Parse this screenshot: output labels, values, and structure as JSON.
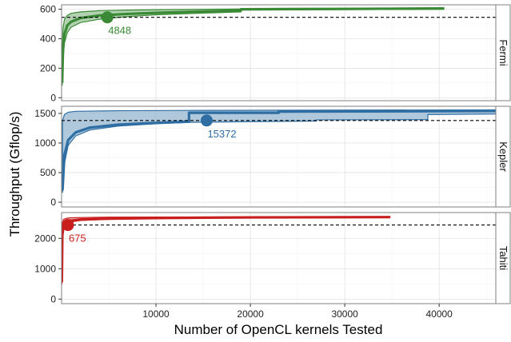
{
  "chart_data": {
    "type": "line",
    "xlabel": "Number of OpenCL kernels Tested",
    "ylabel": "Throughput (Gflop/s)",
    "xlim": [
      0,
      46000
    ],
    "x_ticks": [
      10000,
      20000,
      30000,
      40000
    ],
    "x_tick_labels": [
      "10000",
      "20000",
      "30000",
      "40000"
    ],
    "grid": true,
    "panels": [
      {
        "name": "Fermi",
        "color": "#3a8a35",
        "ylim": [
          -20,
          630
        ],
        "y_ticks": [
          0,
          200,
          400,
          600
        ],
        "reference_line": 545,
        "max_x": 40500,
        "marker": {
          "x": 4848,
          "y": 545,
          "label": "4848"
        },
        "median": [
          [
            60,
            100
          ],
          [
            150,
            330
          ],
          [
            300,
            430
          ],
          [
            600,
            490
          ],
          [
            1000,
            515
          ],
          [
            2000,
            540
          ],
          [
            4000,
            558
          ],
          [
            7000,
            568
          ],
          [
            10000,
            575
          ],
          [
            15000,
            585
          ],
          [
            19000,
            592
          ],
          [
            19000,
            600
          ],
          [
            28000,
            602
          ],
          [
            40500,
            605
          ]
        ],
        "band_low": [
          [
            60,
            80
          ],
          [
            150,
            250
          ],
          [
            300,
            370
          ],
          [
            600,
            440
          ],
          [
            1000,
            478
          ],
          [
            2000,
            510
          ],
          [
            4000,
            532
          ],
          [
            7000,
            550
          ],
          [
            10000,
            562
          ],
          [
            15000,
            574
          ],
          [
            19000,
            582
          ],
          [
            19000,
            594
          ],
          [
            40500,
            600
          ]
        ],
        "band_high": [
          [
            60,
            300
          ],
          [
            150,
            470
          ],
          [
            300,
            530
          ],
          [
            600,
            558
          ],
          [
            1000,
            572
          ],
          [
            2000,
            582
          ],
          [
            4000,
            590
          ],
          [
            7000,
            594
          ],
          [
            10000,
            597
          ],
          [
            15000,
            600
          ],
          [
            19000,
            602
          ],
          [
            40500,
            610
          ]
        ]
      },
      {
        "name": "Kepler",
        "color": "#2e6ea3",
        "ylim": [
          -80,
          1620
        ],
        "y_ticks": [
          0,
          500,
          1000,
          1500
        ],
        "reference_line": 1380,
        "max_x": 46000,
        "marker": {
          "x": 15372,
          "y": 1380,
          "label": "15372"
        },
        "median": [
          [
            100,
            200
          ],
          [
            300,
            800
          ],
          [
            700,
            1050
          ],
          [
            1500,
            1180
          ],
          [
            3000,
            1260
          ],
          [
            6000,
            1310
          ],
          [
            10000,
            1340
          ],
          [
            13500,
            1360
          ],
          [
            13500,
            1510
          ],
          [
            23000,
            1510
          ],
          [
            23000,
            1530
          ],
          [
            46000,
            1540
          ]
        ],
        "band_low": [
          [
            100,
            160
          ],
          [
            300,
            650
          ],
          [
            700,
            960
          ],
          [
            1500,
            1120
          ],
          [
            3000,
            1220
          ],
          [
            6000,
            1285
          ],
          [
            10000,
            1325
          ],
          [
            13500,
            1348
          ],
          [
            20000,
            1360
          ],
          [
            27000,
            1370
          ],
          [
            27000,
            1390
          ],
          [
            38800,
            1395
          ],
          [
            38800,
            1480
          ],
          [
            46000,
            1490
          ]
        ],
        "band_high": [
          [
            100,
            1380
          ],
          [
            300,
            1480
          ],
          [
            700,
            1520
          ],
          [
            1500,
            1535
          ],
          [
            6000,
            1545
          ],
          [
            13500,
            1550
          ],
          [
            46000,
            1560
          ]
        ]
      },
      {
        "name": "Tahiti",
        "color": "#c81e1e",
        "ylim": [
          -150,
          2850
        ],
        "y_ticks": [
          0,
          1000,
          2000
        ],
        "reference_line": 2440,
        "max_x": 34800,
        "marker": {
          "x": 675,
          "y": 2440,
          "label": "675"
        },
        "median": [
          [
            30,
            550
          ],
          [
            80,
            2100
          ],
          [
            200,
            2400
          ],
          [
            500,
            2520
          ],
          [
            1000,
            2580
          ],
          [
            2000,
            2620
          ],
          [
            5000,
            2650
          ],
          [
            10000,
            2670
          ],
          [
            20000,
            2690
          ],
          [
            34800,
            2700
          ]
        ],
        "band_low": [
          [
            30,
            480
          ],
          [
            80,
            1900
          ],
          [
            200,
            2300
          ],
          [
            500,
            2460
          ],
          [
            1000,
            2540
          ],
          [
            2000,
            2590
          ],
          [
            5000,
            2630
          ],
          [
            10000,
            2655
          ],
          [
            20000,
            2675
          ],
          [
            34800,
            2690
          ]
        ],
        "band_high": [
          [
            30,
            2300
          ],
          [
            80,
            2500
          ],
          [
            200,
            2620
          ],
          [
            500,
            2660
          ],
          [
            1000,
            2680
          ],
          [
            5000,
            2700
          ],
          [
            34800,
            2715
          ]
        ]
      }
    ]
  }
}
